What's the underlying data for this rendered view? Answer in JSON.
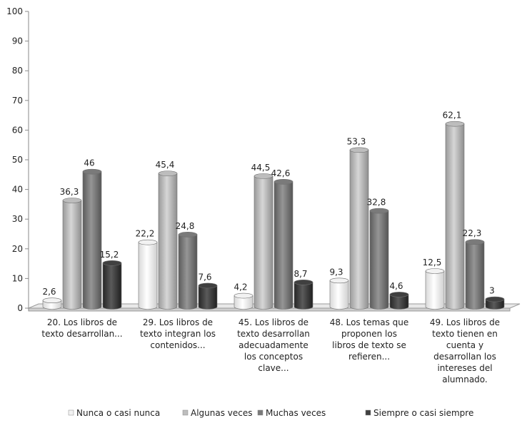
{
  "chart_data": {
    "type": "bar",
    "title": "",
    "xlabel": "",
    "ylabel": "",
    "ylim": [
      0,
      100
    ],
    "yticks": [
      0,
      10,
      20,
      30,
      40,
      50,
      60,
      70,
      80,
      90,
      100
    ],
    "grid": false,
    "legend_position": "bottom",
    "categories": [
      [
        "20. Los libros de",
        "texto desarrollan..."
      ],
      [
        "29. Los libros de",
        "texto integran los",
        "contenidos..."
      ],
      [
        "45. Los libros de",
        "texto desarrollan",
        "adecuadamente",
        "los conceptos",
        "clave..."
      ],
      [
        "48. Los temas que",
        "proponen los",
        "libros de texto se",
        "refieren..."
      ],
      [
        "49. Los libros de",
        "texto tienen en",
        "cuenta y",
        "desarrollan los",
        "intereses del",
        "alumnado."
      ]
    ],
    "series": [
      {
        "name": "Nunca o casi nunca",
        "values": [
          2.6,
          22.2,
          4.2,
          9.3,
          12.5
        ],
        "labels": [
          "2,6",
          "22,2",
          "4,2",
          "9,3",
          "12,5"
        ],
        "color": "#f2f2f2"
      },
      {
        "name": "Algunas veces",
        "values": [
          36.3,
          45.4,
          44.5,
          53.3,
          62.1
        ],
        "labels": [
          "36,3",
          "45,4",
          "44,5",
          "53,3",
          "62,1"
        ],
        "color": "#bdbdbd"
      },
      {
        "name": "Muchas veces",
        "values": [
          46,
          24.8,
          42.6,
          32.8,
          22.3
        ],
        "labels": [
          "46",
          "24,8",
          "42,6",
          "32,8",
          "22,3"
        ],
        "color": "#7a7a7a"
      },
      {
        "name": "Siempre o casi siempre",
        "values": [
          15.2,
          7.6,
          8.7,
          4.6,
          3
        ],
        "labels": [
          "15,2",
          "7,6",
          "8,7",
          "4,6",
          "3"
        ],
        "color": "#404040"
      }
    ]
  }
}
